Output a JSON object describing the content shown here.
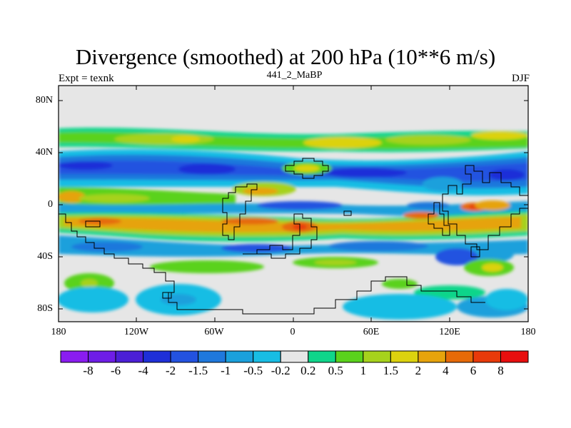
{
  "title": "Divergence (smoothed) at 200 hPa (10**6 m/s)",
  "subtitle_left": "Expt = texnk",
  "subtitle_center": "441_2_MaBP",
  "subtitle_right": "DJF",
  "lat_labels": [
    "80N",
    "40N",
    "0",
    "40S",
    "80S"
  ],
  "lon_labels": [
    "180",
    "120W",
    "60W",
    "0",
    "60E",
    "120E",
    "180"
  ],
  "colorbar": {
    "labels": [
      "-8",
      "-6",
      "-4",
      "-2",
      "-1.5",
      "-1",
      "-0.5",
      "-0.2",
      "0.2",
      "0.5",
      "1",
      "1.5",
      "2",
      "4",
      "6",
      "8"
    ],
    "colors": [
      "#8a1cf0",
      "#6e1de6",
      "#4b1fd6",
      "#1e2fd8",
      "#2352e0",
      "#1f78dc",
      "#1aa0dc",
      "#18bde4",
      "#e6e6e6",
      "#0fd58a",
      "#5ad21c",
      "#a6d21c",
      "#dcd20e",
      "#e6a30c",
      "#e66a08",
      "#e83a0a",
      "#e80e0e"
    ]
  },
  "colors": {
    "land_background": "#e6e6e6",
    "coast": "#000000"
  }
}
